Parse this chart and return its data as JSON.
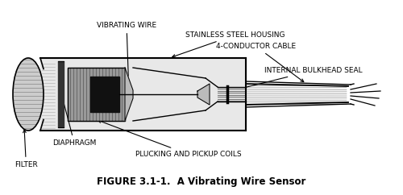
{
  "title": "FIGURE 3.1-1.  A Vibrating Wire Sensor",
  "title_fontsize": 8.5,
  "title_style": "bold",
  "bg_color": "#ffffff",
  "labels": {
    "vibrating_wire": "VIBRATING WIRE",
    "stainless_steel": "STAINLESS STEEL HOUSING",
    "conductor_cable": "4-CONDUCTOR CABLE",
    "internal_bulkhead": "INTERNAL BULKHEAD SEAL",
    "diaphragm": "DIAPHRAGM",
    "plucking": "PLUCKING AND PICKUP COILS",
    "filter": "FILTER"
  },
  "line_color": "#000000",
  "fill_light": "#e8e8e8",
  "fill_dark": "#111111",
  "fill_mid": "#888888",
  "fill_filter": "#cccccc"
}
